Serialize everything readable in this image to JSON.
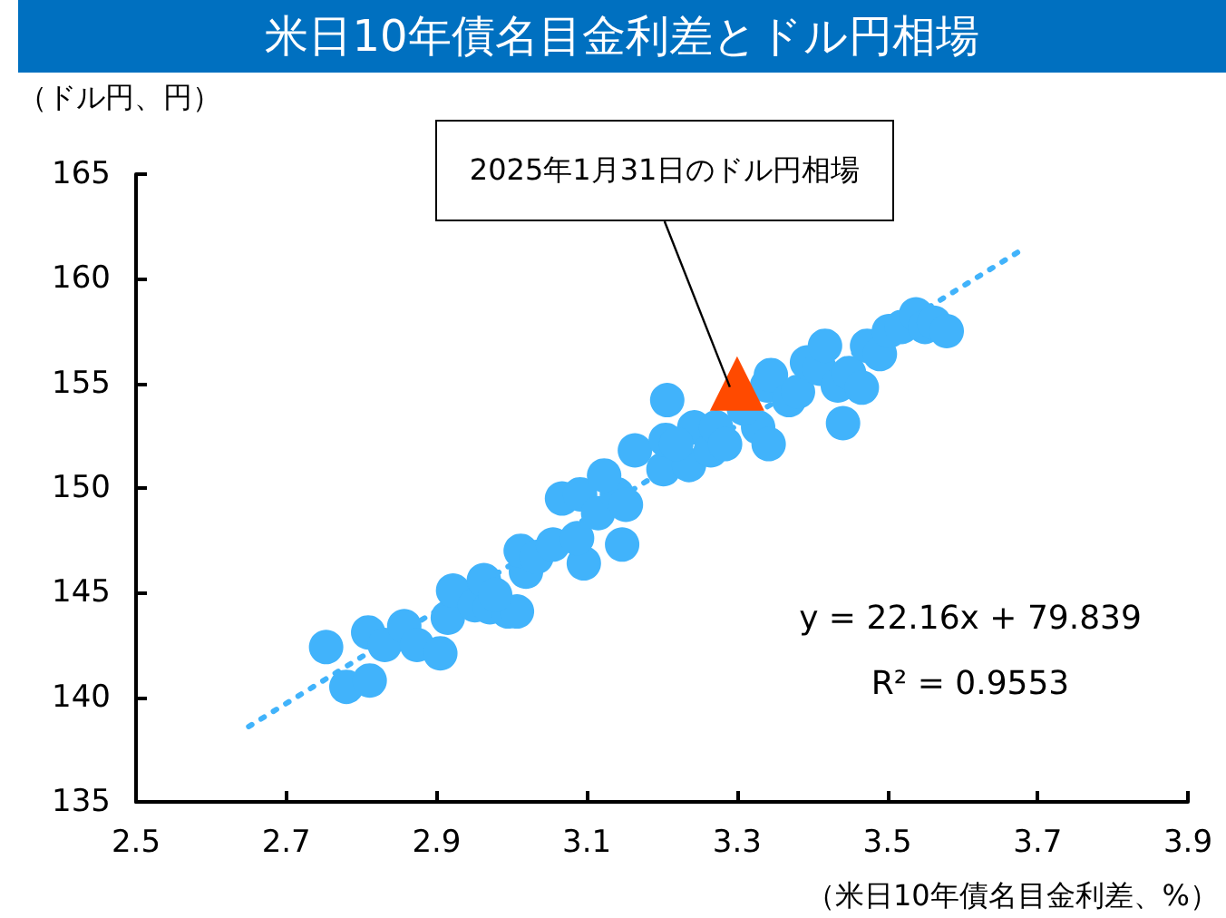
{
  "chart_data": {
    "type": "scatter",
    "title": "米日10年債名目金利差とドル円相場",
    "xlabel": "（米日10年債名目金利差、%）",
    "ylabel": "（ドル円、円）",
    "xlim": [
      2.5,
      3.9
    ],
    "xticks": [
      2.5,
      2.7,
      2.9,
      3.1,
      3.3,
      3.5,
      3.7,
      3.9
    ],
    "ylim": [
      135,
      165
    ],
    "yticks": [
      135,
      140,
      145,
      150,
      155,
      160,
      165
    ],
    "grid": false,
    "series": [
      {
        "marker": "circle",
        "color": "#41b3fb",
        "x": [
          2.753,
          2.78,
          2.811,
          2.809,
          2.831,
          2.857,
          2.874,
          2.905,
          2.915,
          2.922,
          2.951,
          2.971,
          2.995,
          3.007,
          2.963,
          2.978,
          3.019,
          3.012,
          3.033,
          3.055,
          3.096,
          3.087,
          3.067,
          3.091,
          3.115,
          3.14,
          3.147,
          3.152,
          3.164,
          3.123,
          3.202,
          3.205,
          3.207,
          3.236,
          3.243,
          3.265,
          3.272,
          3.284,
          3.328,
          3.342,
          3.34,
          3.345,
          3.369,
          3.381,
          3.393,
          3.41,
          3.434,
          3.441,
          3.449,
          3.466,
          3.473,
          3.49,
          3.502,
          3.519,
          3.538,
          3.55,
          3.562,
          3.579,
          3.417,
          3.309,
          3.219
        ],
        "values": [
          142.4,
          140.5,
          140.8,
          143.1,
          142.5,
          143.4,
          142.5,
          142.1,
          143.8,
          145.1,
          144.4,
          144.3,
          144.1,
          144.1,
          145.6,
          144.9,
          146.0,
          147.0,
          146.7,
          147.3,
          146.4,
          147.6,
          149.5,
          149.7,
          148.8,
          149.7,
          147.3,
          149.2,
          151.8,
          150.6,
          150.9,
          152.3,
          154.2,
          151.1,
          152.9,
          151.8,
          152.9,
          152.1,
          152.9,
          152.1,
          154.9,
          155.4,
          154.2,
          154.6,
          156.0,
          155.7,
          154.9,
          153.1,
          155.5,
          154.8,
          156.8,
          156.4,
          157.5,
          157.7,
          158.3,
          157.7,
          157.9,
          157.5,
          156.8,
          153.8,
          152.1
        ]
      },
      {
        "type": "line",
        "line_style": "dotted",
        "color": "#41b3fb",
        "x": [
          2.65,
          3.675
        ],
        "values": [
          138.6,
          161.3
        ]
      },
      {
        "type": "scatter",
        "marker": "triangle",
        "color": "#ff4a00",
        "x": [
          3.3
        ],
        "values": [
          155.0
        ]
      }
    ],
    "annotations": [
      {
        "text": "2025年1月31日のドル円相場",
        "x": 3.3,
        "y": 155.0
      },
      "y = 22.16x + 79.839",
      "R² = 0.9553"
    ]
  }
}
